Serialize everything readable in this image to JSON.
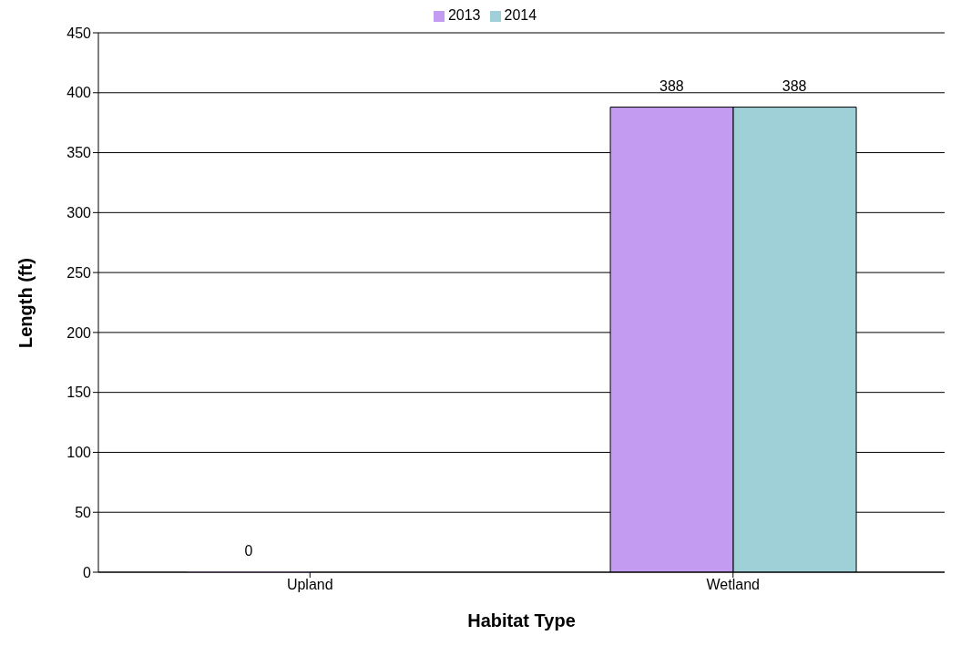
{
  "chart_data": {
    "type": "bar",
    "xlabel": "Habitat Type",
    "ylabel": "Length (ft)",
    "categories": [
      "Upland",
      "Wetland"
    ],
    "series": [
      {
        "name": "2013",
        "color": "#c39bf0",
        "values": [
          0,
          388
        ],
        "value_labels": [
          "0",
          "388"
        ]
      },
      {
        "name": "2014",
        "color": "#9fd0d8",
        "values": [
          null,
          388
        ],
        "value_labels": [
          null,
          "388"
        ]
      }
    ],
    "ylim": [
      0,
      450
    ],
    "yticks": [
      0,
      50,
      100,
      150,
      200,
      250,
      300,
      350,
      400,
      450
    ],
    "grid": "y",
    "legend": "top"
  }
}
